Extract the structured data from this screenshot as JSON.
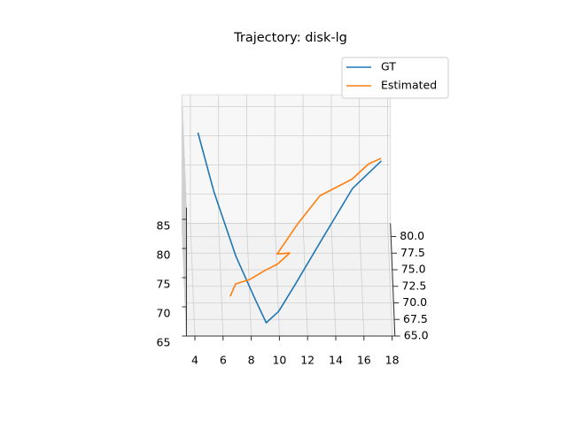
{
  "chart_data": {
    "type": "line3d",
    "title": "Trajectory: disk-lg",
    "series": [
      {
        "name": "GT",
        "color": "#1f77b4",
        "x": [
          4.5,
          5.6,
          7.1,
          8.3,
          9.1,
          10.0,
          11.2,
          13.2,
          15.4,
          17.5
        ],
        "y": [
          80,
          78,
          75,
          70,
          67,
          68,
          70,
          73,
          76,
          79
        ],
        "z": [
          82.8,
          74.9,
          67.3,
          66.0,
          65.0,
          65.8,
          68.1,
          72.6,
          77.8,
          79.1
        ]
      },
      {
        "name": "Estimated",
        "color": "#ff7f0e",
        "x": [
          6.6,
          7.0,
          8.0,
          9.1,
          10.0,
          10.9,
          10.0,
          11.5,
          13.1,
          15.4,
          16.6,
          17.5
        ],
        "y": [
          70,
          71,
          72,
          72.5,
          73,
          74,
          73.5,
          75,
          77,
          78,
          79,
          80
        ],
        "z": [
          66.1,
          67.1,
          66.7,
          67.7,
          68.2,
          69.0,
          69.4,
          72.9,
          75.4,
          77.1,
          78.6,
          78.4
        ]
      }
    ],
    "xlim": [
      3.4,
      18.2
    ],
    "ylim": [
      65,
      82
    ],
    "zlim": [
      65,
      87
    ],
    "xticks": [
      4,
      6,
      8,
      10,
      12,
      14,
      16,
      18
    ],
    "yticks": [
      {
        "value": 65,
        "label": "65.0"
      },
      {
        "value": 67.5,
        "label": "67.5"
      },
      {
        "value": 70,
        "label": "70.0"
      },
      {
        "value": 72.5,
        "label": "72.5"
      },
      {
        "value": 75,
        "label": "75.0"
      },
      {
        "value": 77.5,
        "label": "77.5"
      },
      {
        "value": 80,
        "label": "80.0"
      }
    ],
    "zticks": [
      65,
      70,
      75,
      80,
      85
    ],
    "grid": true,
    "legend": "upper right"
  }
}
